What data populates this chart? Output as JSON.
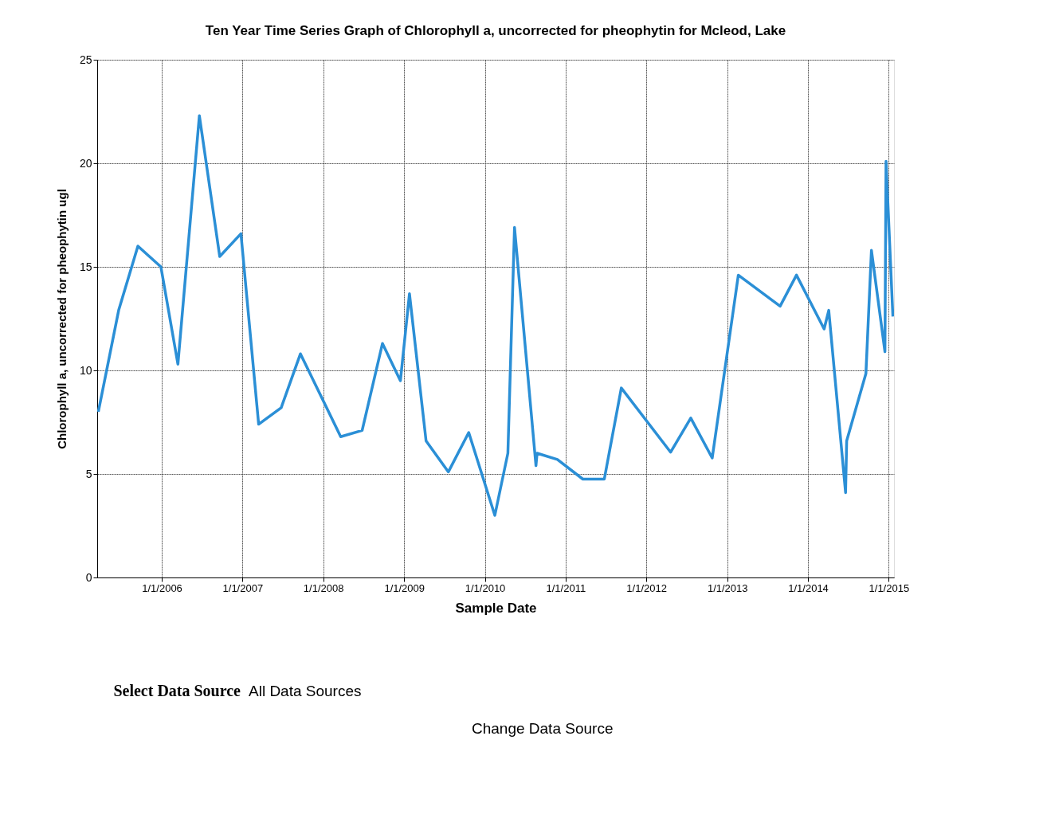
{
  "chart_data": {
    "type": "line",
    "title": "Ten Year Time Series Graph of Chlorophyll a, uncorrected for pheophytin for Mcleod, Lake",
    "xlabel": "Sample Date",
    "ylabel": "Chlorophyll a, uncorrected for pheophytin ugl",
    "x": [
      "2005-03-20",
      "2005-06-20",
      "2005-09-15",
      "2005-12-28",
      "2006-03-15",
      "2006-06-20",
      "2006-09-20",
      "2006-12-25",
      "2007-03-15",
      "2007-06-25",
      "2007-09-20",
      "2008-03-20",
      "2008-06-25",
      "2008-09-25",
      "2008-12-15",
      "2009-01-25",
      "2009-04-10",
      "2009-07-20",
      "2009-10-20",
      "2010-02-15",
      "2010-04-15",
      "2010-05-15",
      "2010-08-20",
      "2010-08-25",
      "2010-11-25",
      "2011-03-20",
      "2011-06-25",
      "2011-09-10",
      "2012-04-20",
      "2012-07-20",
      "2012-10-25",
      "2013-02-20",
      "2013-08-28",
      "2013-11-10",
      "2014-03-15",
      "2014-04-05",
      "2014-06-20",
      "2014-06-25",
      "2014-09-20",
      "2014-10-15",
      "2014-12-15",
      "2014-12-20",
      "2015-01-20"
    ],
    "series": [
      {
        "color": "#2b8fd6",
        "values": [
          8.0,
          12.9,
          16.0,
          15.0,
          10.3,
          22.3,
          15.5,
          16.6,
          7.4,
          8.2,
          10.8,
          6.8,
          7.1,
          11.3,
          9.5,
          13.7,
          6.6,
          5.1,
          7.0,
          3.0,
          6.0,
          16.9,
          5.4,
          6.0,
          5.7,
          4.75,
          4.75,
          9.15,
          6.05,
          7.7,
          5.77,
          14.6,
          13.1,
          14.6,
          12.0,
          12.9,
          4.1,
          6.6,
          9.85,
          15.8,
          10.9,
          20.1,
          12.6
        ]
      }
    ],
    "xlim": [
      "2005-03-15",
      "2015-01-25"
    ],
    "xticks": [
      {
        "value": "2006-01-01",
        "label": "1/1/2006"
      },
      {
        "value": "2007-01-01",
        "label": "1/1/2007"
      },
      {
        "value": "2008-01-01",
        "label": "1/1/2008"
      },
      {
        "value": "2009-01-01",
        "label": "1/1/2009"
      },
      {
        "value": "2010-01-01",
        "label": "1/1/2010"
      },
      {
        "value": "2011-01-01",
        "label": "1/1/2011"
      },
      {
        "value": "2012-01-01",
        "label": "1/1/2012"
      },
      {
        "value": "2013-01-01",
        "label": "1/1/2013"
      },
      {
        "value": "2014-01-01",
        "label": "1/1/2014"
      },
      {
        "value": "2015-01-01",
        "label": "1/1/2015"
      }
    ],
    "ylim": [
      0,
      25
    ],
    "yticks": [
      0,
      5,
      10,
      15,
      20,
      25
    ],
    "grid": true,
    "marker": "none",
    "line_style": "solid",
    "annotations": [
      "Select Data Source",
      "All Data Sources",
      "Change Data Source"
    ]
  }
}
